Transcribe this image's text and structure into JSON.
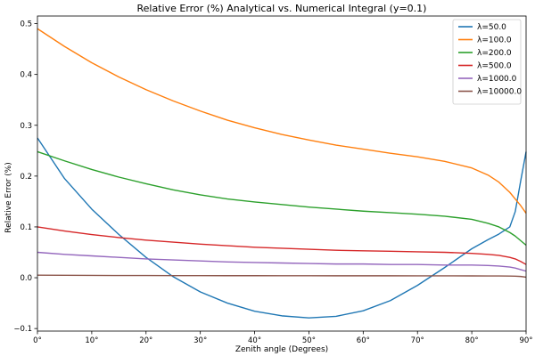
{
  "chart_data": {
    "type": "line",
    "title": "Relative Error (%)  Analytical vs. Numerical Integral (y=0.1)",
    "xlabel": "Zenith angle (Degrees)",
    "ylabel": "Relative Error (%)",
    "xlim": [
      0,
      90
    ],
    "ylim": [
      -0.105,
      0.515
    ],
    "xticks": [
      0,
      10,
      20,
      30,
      40,
      50,
      60,
      70,
      80,
      90
    ],
    "xtick_labels": [
      "0°",
      "10°",
      "20°",
      "30°",
      "40°",
      "50°",
      "60°",
      "70°",
      "80°",
      "90°"
    ],
    "yticks": [
      -0.1,
      0.0,
      0.1,
      0.2,
      0.3,
      0.4,
      0.5
    ],
    "ytick_labels": [
      "−0.1",
      "0.0",
      "0.1",
      "0.2",
      "0.3",
      "0.4",
      "0.5"
    ],
    "grid": false,
    "legend_position": "top-right",
    "x": [
      0,
      5,
      10,
      15,
      20,
      25,
      30,
      35,
      40,
      45,
      50,
      55,
      60,
      65,
      70,
      75,
      80,
      83,
      85,
      87,
      88,
      89,
      90
    ],
    "series": [
      {
        "name": "λ=50.0",
        "color": "#1f77b4",
        "values": [
          0.275,
          0.195,
          0.135,
          0.085,
          0.04,
          0.002,
          -0.028,
          -0.05,
          -0.066,
          -0.075,
          -0.079,
          -0.076,
          -0.065,
          -0.045,
          -0.015,
          0.02,
          0.057,
          0.075,
          0.086,
          0.1,
          0.13,
          0.19,
          0.248
        ]
      },
      {
        "name": "λ=100.0",
        "color": "#ff7f0e",
        "values": [
          0.49,
          0.455,
          0.423,
          0.395,
          0.37,
          0.348,
          0.328,
          0.31,
          0.295,
          0.282,
          0.271,
          0.261,
          0.253,
          0.245,
          0.238,
          0.229,
          0.216,
          0.202,
          0.188,
          0.168,
          0.155,
          0.142,
          0.127
        ]
      },
      {
        "name": "λ=200.0",
        "color": "#2ca02c",
        "values": [
          0.248,
          0.23,
          0.213,
          0.198,
          0.185,
          0.173,
          0.163,
          0.155,
          0.149,
          0.144,
          0.139,
          0.135,
          0.131,
          0.128,
          0.125,
          0.121,
          0.115,
          0.107,
          0.1,
          0.089,
          0.082,
          0.073,
          0.064
        ]
      },
      {
        "name": "λ=500.0",
        "color": "#d62728",
        "values": [
          0.1,
          0.092,
          0.085,
          0.079,
          0.074,
          0.07,
          0.066,
          0.063,
          0.06,
          0.058,
          0.056,
          0.054,
          0.053,
          0.052,
          0.051,
          0.05,
          0.048,
          0.046,
          0.044,
          0.04,
          0.037,
          0.032,
          0.026
        ]
      },
      {
        "name": "λ=1000.0",
        "color": "#9467bd",
        "values": [
          0.05,
          0.046,
          0.043,
          0.04,
          0.037,
          0.035,
          0.033,
          0.031,
          0.03,
          0.029,
          0.028,
          0.027,
          0.027,
          0.026,
          0.026,
          0.025,
          0.025,
          0.024,
          0.023,
          0.021,
          0.019,
          0.016,
          0.013
        ]
      },
      {
        "name": "λ=10000.0",
        "color": "#8c564b",
        "values": [
          0.005,
          0.0048,
          0.0046,
          0.0044,
          0.0043,
          0.0042,
          0.0041,
          0.004,
          0.004,
          0.0039,
          0.0039,
          0.0038,
          0.0038,
          0.0038,
          0.0037,
          0.0037,
          0.0036,
          0.0035,
          0.0034,
          0.0032,
          0.003,
          0.0025,
          0.001
        ]
      }
    ]
  }
}
